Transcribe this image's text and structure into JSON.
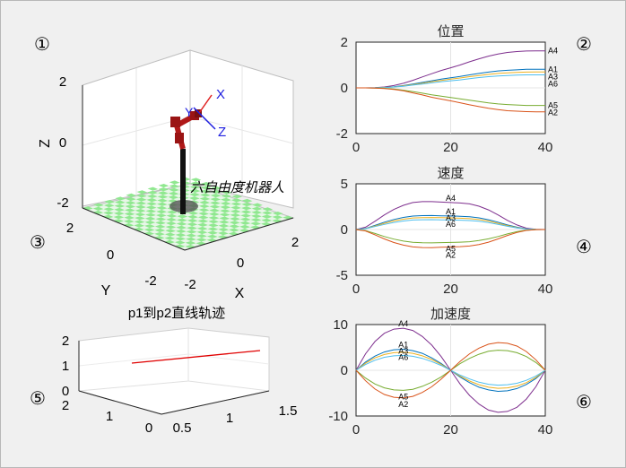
{
  "figure": {
    "background": "#f0f0f0",
    "border_color": "#b8b8b8",
    "circle_labels": [
      "①",
      "②",
      "③",
      "④",
      "⑤",
      "⑥"
    ]
  },
  "robot_view": {
    "zlabel": "Z",
    "ylabel": "Y",
    "xlabel": "X",
    "z_ticks": [
      "2",
      "0",
      "-2"
    ],
    "y_ticks": [
      "2",
      "0",
      "-2"
    ],
    "x_ticks": [
      "-2",
      "0",
      "2"
    ],
    "robot_name": "六自由度机器人",
    "frame_labels": [
      "X",
      "Y",
      "Z"
    ],
    "floor_colors": [
      "#90e890",
      "#e8f6e8"
    ],
    "arm_color": "#b01818",
    "frame_colors": {
      "x": "#e02020",
      "y": "#2020e0",
      "z": "#2020e0"
    }
  },
  "trajectory_view": {
    "title": "p1到p2直线轨迹",
    "z_ticks": [
      "2",
      "1",
      "0"
    ],
    "y_ticks": [
      "2",
      "1",
      "0"
    ],
    "x_ticks": [
      "0.5",
      "1",
      "1.5"
    ],
    "line_color": "#e00000"
  },
  "chart_data": [
    {
      "type": "line",
      "title": "位置",
      "x_ticks": [
        0,
        20,
        40
      ],
      "y_ticks": [
        2,
        0,
        -2
      ],
      "xlim": [
        0,
        40
      ],
      "ylim": [
        -2,
        2
      ],
      "grid": true,
      "x": [
        0,
        2,
        4,
        6,
        8,
        10,
        12,
        14,
        16,
        18,
        20,
        22,
        24,
        26,
        28,
        30,
        32,
        34,
        36,
        38,
        40
      ],
      "series": [
        {
          "name": "A4",
          "color": "#7e2f8e",
          "values": [
            0,
            0.0,
            0.01,
            0.04,
            0.1,
            0.2,
            0.33,
            0.48,
            0.62,
            0.76,
            0.88,
            1.0,
            1.14,
            1.27,
            1.39,
            1.48,
            1.55,
            1.59,
            1.61,
            1.62,
            1.62
          ]
        },
        {
          "name": "A1",
          "color": "#0072bd",
          "values": [
            0,
            0.0,
            0.0,
            0.02,
            0.05,
            0.1,
            0.17,
            0.24,
            0.31,
            0.38,
            0.44,
            0.5,
            0.57,
            0.63,
            0.69,
            0.74,
            0.77,
            0.79,
            0.81,
            0.81,
            0.81
          ]
        },
        {
          "name": "A3",
          "color": "#edb120",
          "values": [
            0,
            0.0,
            0.0,
            0.02,
            0.04,
            0.09,
            0.14,
            0.2,
            0.27,
            0.32,
            0.38,
            0.43,
            0.49,
            0.54,
            0.59,
            0.63,
            0.66,
            0.68,
            0.69,
            0.7,
            0.7
          ]
        },
        {
          "name": "A6",
          "color": "#4dbeee",
          "values": [
            0,
            0.0,
            0.0,
            0.01,
            0.04,
            0.07,
            0.12,
            0.17,
            0.22,
            0.27,
            0.31,
            0.35,
            0.4,
            0.45,
            0.49,
            0.52,
            0.54,
            0.56,
            0.57,
            0.57,
            0.57
          ]
        },
        {
          "name": "A5",
          "color": "#77ac30",
          "values": [
            0,
            0.0,
            -0.01,
            -0.02,
            -0.05,
            -0.1,
            -0.16,
            -0.23,
            -0.3,
            -0.36,
            -0.42,
            -0.48,
            -0.54,
            -0.6,
            -0.66,
            -0.7,
            -0.73,
            -0.75,
            -0.77,
            -0.77,
            -0.77
          ]
        },
        {
          "name": "A2",
          "color": "#d95319",
          "values": [
            0,
            0.0,
            -0.01,
            -0.03,
            -0.07,
            -0.13,
            -0.22,
            -0.31,
            -0.41,
            -0.49,
            -0.57,
            -0.65,
            -0.74,
            -0.82,
            -0.89,
            -0.95,
            -1.0,
            -1.02,
            -1.04,
            -1.05,
            -1.05
          ]
        }
      ]
    },
    {
      "type": "line",
      "title": "速度",
      "x_ticks": [
        0,
        20,
        40
      ],
      "y_ticks": [
        5,
        0,
        -5
      ],
      "xlim": [
        0,
        40
      ],
      "ylim": [
        -5,
        5
      ],
      "grid": true,
      "x": [
        0,
        2,
        4,
        6,
        8,
        10,
        12,
        14,
        16,
        18,
        20,
        22,
        24,
        26,
        28,
        30,
        32,
        34,
        36,
        38,
        40
      ],
      "series": [
        {
          "name": "A4",
          "color": "#7e2f8e",
          "values": [
            0,
            0.25,
            0.9,
            1.6,
            2.2,
            2.65,
            2.95,
            3.05,
            3.05,
            3.0,
            2.95,
            2.9,
            2.8,
            2.55,
            2.15,
            1.6,
            1.0,
            0.5,
            0.15,
            0.02,
            0
          ]
        },
        {
          "name": "A1",
          "color": "#0072bd",
          "values": [
            0,
            0.12,
            0.45,
            0.8,
            1.1,
            1.32,
            1.47,
            1.52,
            1.53,
            1.5,
            1.48,
            1.45,
            1.4,
            1.27,
            1.07,
            0.8,
            0.5,
            0.25,
            0.08,
            0.01,
            0
          ]
        },
        {
          "name": "A3",
          "color": "#edb120",
          "values": [
            0,
            0.1,
            0.38,
            0.68,
            0.94,
            1.13,
            1.26,
            1.3,
            1.31,
            1.29,
            1.27,
            1.24,
            1.19,
            1.09,
            0.92,
            0.68,
            0.43,
            0.21,
            0.06,
            0.01,
            0
          ]
        },
        {
          "name": "A6",
          "color": "#4dbeee",
          "values": [
            0,
            0.09,
            0.32,
            0.56,
            0.77,
            0.93,
            1.04,
            1.07,
            1.08,
            1.06,
            1.04,
            1.02,
            0.98,
            0.9,
            0.75,
            0.56,
            0.35,
            0.17,
            0.05,
            0.01,
            0
          ]
        },
        {
          "name": "A5",
          "color": "#77ac30",
          "values": [
            0,
            -0.12,
            -0.43,
            -0.76,
            -1.05,
            -1.26,
            -1.4,
            -1.45,
            -1.46,
            -1.43,
            -1.41,
            -1.38,
            -1.33,
            -1.21,
            -1.02,
            -0.76,
            -0.48,
            -0.24,
            -0.07,
            -0.01,
            0
          ]
        },
        {
          "name": "A2",
          "color": "#d95319",
          "values": [
            0,
            -0.16,
            -0.58,
            -1.03,
            -1.42,
            -1.71,
            -1.9,
            -1.97,
            -1.98,
            -1.94,
            -1.91,
            -1.87,
            -1.8,
            -1.64,
            -1.38,
            -1.03,
            -0.65,
            -0.32,
            -0.1,
            -0.01,
            0
          ]
        }
      ]
    },
    {
      "type": "line",
      "title": "加速度",
      "x_ticks": [
        0,
        20,
        40
      ],
      "y_ticks": [
        10,
        0,
        -10
      ],
      "xlim": [
        0,
        40
      ],
      "ylim": [
        -10,
        10
      ],
      "grid": true,
      "x": [
        0,
        2,
        4,
        6,
        8,
        10,
        12,
        14,
        16,
        18,
        20,
        22,
        24,
        26,
        28,
        30,
        32,
        34,
        36,
        38,
        40
      ],
      "series": [
        {
          "name": "A4",
          "color": "#7e2f8e",
          "values": [
            0,
            3.6,
            6.3,
            8.1,
            9.0,
            9.2,
            8.7,
            7.4,
            5.5,
            3.0,
            0,
            -3.0,
            -5.5,
            -7.4,
            -8.7,
            -9.2,
            -9.0,
            -8.1,
            -6.3,
            -3.6,
            0
          ]
        },
        {
          "name": "A1",
          "color": "#0072bd",
          "values": [
            0,
            1.8,
            3.1,
            4.0,
            4.5,
            4.6,
            4.3,
            3.7,
            2.7,
            1.5,
            0,
            -1.5,
            -2.7,
            -3.7,
            -4.3,
            -4.6,
            -4.5,
            -4.0,
            -3.1,
            -1.8,
            0
          ]
        },
        {
          "name": "A3",
          "color": "#edb120",
          "values": [
            0,
            1.55,
            2.7,
            3.45,
            3.85,
            3.95,
            3.7,
            3.15,
            2.35,
            1.3,
            0,
            -1.3,
            -2.35,
            -3.15,
            -3.7,
            -3.95,
            -3.85,
            -3.45,
            -2.7,
            -1.55,
            0
          ]
        },
        {
          "name": "A6",
          "color": "#4dbeee",
          "values": [
            0,
            1.25,
            2.2,
            2.85,
            3.15,
            3.25,
            3.05,
            2.6,
            1.9,
            1.05,
            0,
            -1.05,
            -1.9,
            -2.6,
            -3.05,
            -3.25,
            -3.15,
            -2.85,
            -2.2,
            -1.25,
            0
          ]
        },
        {
          "name": "A5",
          "color": "#77ac30",
          "values": [
            0,
            -1.7,
            -3.0,
            -3.85,
            -4.3,
            -4.4,
            -4.15,
            -3.5,
            -2.6,
            -1.45,
            0,
            1.45,
            2.6,
            3.5,
            4.15,
            4.4,
            4.3,
            3.85,
            3.0,
            1.7,
            0
          ]
        },
        {
          "name": "A2",
          "color": "#d95319",
          "values": [
            0,
            -2.3,
            -4.1,
            -5.3,
            -5.9,
            -6.05,
            -5.7,
            -4.85,
            -3.6,
            -1.95,
            0,
            1.95,
            3.6,
            4.85,
            5.7,
            6.05,
            5.9,
            5.3,
            4.1,
            2.3,
            0
          ]
        }
      ]
    }
  ]
}
